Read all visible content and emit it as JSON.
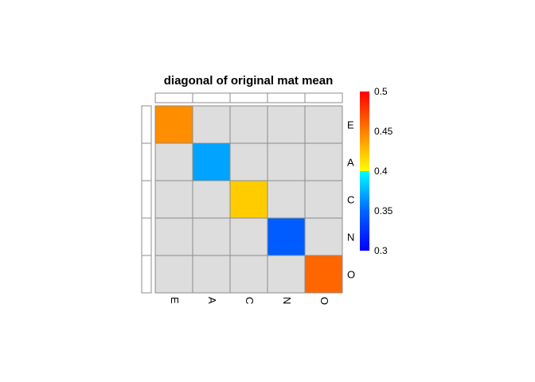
{
  "chart_data": {
    "type": "heatmap",
    "title": "diagonal of original mat mean",
    "rows": [
      "E",
      "A",
      "C",
      "N",
      "O"
    ],
    "columns": [
      "E",
      "A",
      "C",
      "N",
      "O"
    ],
    "values": [
      [
        0.445,
        null,
        null,
        null,
        null
      ],
      [
        null,
        0.37,
        null,
        null,
        null
      ],
      [
        null,
        null,
        0.42,
        null,
        null
      ],
      [
        null,
        null,
        null,
        0.345,
        null
      ],
      [
        null,
        null,
        null,
        null,
        0.46
      ]
    ],
    "missing_color": "#dddddd",
    "color_scale": {
      "range": [
        0.3,
        0.5
      ],
      "ticks": [
        "0.3",
        "0.35",
        "0.4",
        "0.45",
        "0.5"
      ],
      "stops": [
        {
          "value": 0.3,
          "color": "#0000ff"
        },
        {
          "value": 0.35,
          "color": "#0066ff"
        },
        {
          "value": 0.4,
          "color": "#00ffff"
        },
        {
          "value": 0.4,
          "color": "#ffff00"
        },
        {
          "value": 0.45,
          "color": "#ff8000"
        },
        {
          "value": 0.5,
          "color": "#ff0000"
        }
      ]
    },
    "legend_placement": "right",
    "grid": true
  }
}
